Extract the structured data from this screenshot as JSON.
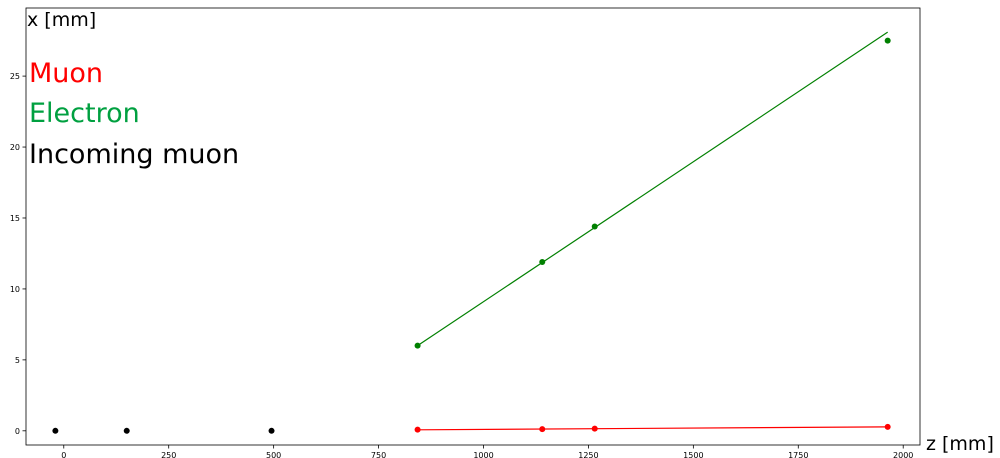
{
  "chart_data": {
    "type": "scatter",
    "xlabel": "z [mm]",
    "ylabel": "x [mm]",
    "xlim": [
      -90,
      2040
    ],
    "ylim": [
      -1,
      29.8
    ],
    "xticks": [
      0,
      250,
      500,
      750,
      1000,
      1250,
      1500,
      1750,
      2000
    ],
    "yticks": [
      0,
      5,
      10,
      15,
      20,
      25
    ],
    "xtick_labels": [
      "0",
      "250",
      "500",
      "750",
      "1000",
      "1250",
      "1500",
      "1750",
      "2000"
    ],
    "ytick_labels": [
      "0",
      "5",
      "10",
      "15",
      "20",
      "25"
    ],
    "grid": false,
    "legend_placement": "top-left",
    "series": [
      {
        "name": "Muon",
        "color": "#ff0000",
        "points": {
          "x": [
            843,
            1140,
            1265,
            1963
          ],
          "y": [
            0.08,
            0.12,
            0.15,
            0.28
          ]
        },
        "fit_line": {
          "x": [
            843,
            1963
          ],
          "y": [
            0.07,
            0.28
          ]
        }
      },
      {
        "name": "Electron",
        "color": "#008000",
        "points": {
          "x": [
            843,
            1140,
            1265,
            1963
          ],
          "y": [
            6.0,
            11.9,
            14.4,
            27.5
          ]
        },
        "fit_line": {
          "x": [
            843,
            1963
          ],
          "y": [
            6.0,
            28.1
          ]
        }
      },
      {
        "name": "Incoming muon",
        "color": "#000000",
        "points": {
          "x": [
            -20,
            150,
            495
          ],
          "y": [
            0.0,
            0.0,
            0.0
          ]
        }
      }
    ]
  },
  "legend_colors": {
    "Muon": "#ff0000",
    "Electron": "#00a040",
    "Incoming muon": "#000000"
  }
}
